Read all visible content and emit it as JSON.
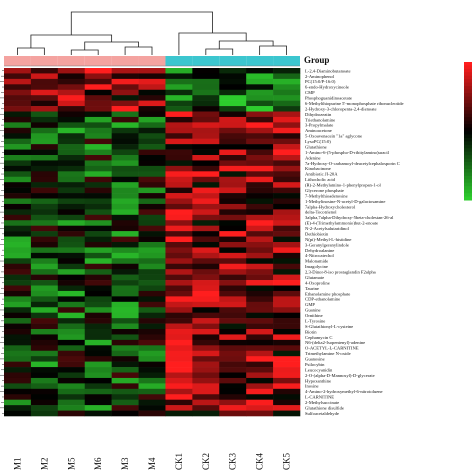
{
  "chart_data": {
    "type": "heatmap",
    "legend_title": "Group",
    "columns": [
      "M1",
      "M2",
      "M5",
      "M6",
      "M3",
      "M4",
      "CK1",
      "CK2",
      "CK3",
      "CK4",
      "CK5"
    ],
    "column_groups": [
      "M",
      "M",
      "M",
      "M",
      "M",
      "M",
      "CK",
      "CK",
      "CK",
      "CK",
      "CK"
    ],
    "group_colors": {
      "M": "#f4a3a0",
      "CK": "#3cc6cf"
    },
    "color_scale": {
      "high": "#ff1f1f",
      "mid": "#000000",
      "low": "#2fd12f",
      "range": [
        -2,
        2
      ]
    },
    "rows": [
      "L-2,4-Diaminobutanoate",
      "2-Aminophenol",
      "PC(15:0/P-16:0)",
      "6-endo-Hydroxycineole",
      "CMP",
      "Phosphoguanidinoacetate",
      "6-Methylthiopurine 5'-monophosphate ribonucleotide",
      "2-Hydroxy-3-chloropenta-2,4-dienoate",
      "Dihydrozeatin",
      "Triethanolamine",
      "3-Propylmalate",
      "Aminoacetone",
      "5-Oxoavenacein \"1a\" aglycone",
      "LysoPC(15:0)",
      "Glutathione",
      "1-Amino-6-(5-phospho-D-ribitylamino)uracil",
      "Adenine",
      "7a-Hydroxy-O-carbamoyl-deacetylcephalosporin C",
      "Kinobacinone",
      "Antibiotic JI-20A",
      "Lithocholic acid",
      "(R)-2-Methylamino-1-phenylpropan-1-ol",
      "Glycerone phosphate",
      "7-Methylthioadenosine",
      "1-Methylinosine-N-acetyl-D-galactosamine",
      "7alpha-Hydroxycholesterol",
      "delta-Tocotrienol",
      "3alpha,7alpha-Dihydroxy-5beta-cholestan-26-al",
      "(E)-4-(Trimethylammonio)but-2-enoate",
      "N-2-Acetylsalutaridinol",
      "Dethiobiotin",
      "N(pi)-Methyl-L-histidine",
      "3-Geranylgeranylindole",
      "Dehydroalanine",
      "4-Nitrocatechol",
      "Malonamide",
      "Imagolycine",
      "2,3-Dinor-8-iso prostaglandin F2alpha",
      "Glutamate",
      "4-Oxoproline",
      "Taurine",
      "Ethanolamine phosphate",
      "CDP-ethanolamine",
      "GMP",
      "Guanine",
      "Ornithine",
      "L-Tyrosine",
      "S-Glutathionyl-L-cysteine",
      "Biotin",
      "Cephamycin C",
      "N6-(delta2-Isopentenyl)-adenine",
      "O-ACETYL-L-CARNITINE",
      "Trimethylamine N-oxide",
      "Guanosine",
      "Psilocybin",
      "Leucocyanidin",
      "2-O-(alpha-D-Mannosyl)-D-glycerate",
      "Hypoxanthine",
      "Inosine",
      "4-Amino-2-hydroxymethyl-6-nitrotoluene",
      "L-CARNITINE",
      "2-Methylsuccinate",
      "Glutathione disulfide",
      "Sulfoacetaldehyde"
    ]
  }
}
